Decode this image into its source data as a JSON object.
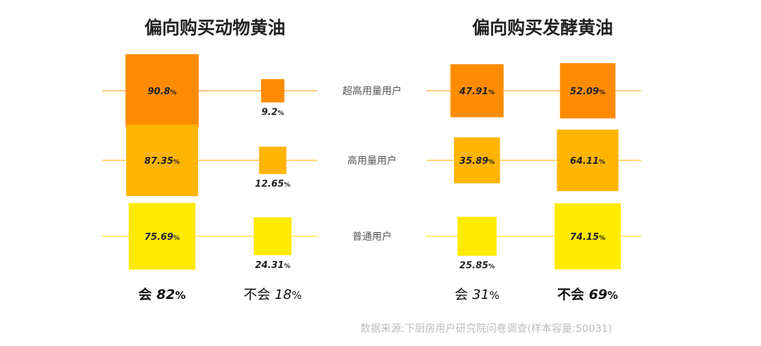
{
  "chart_data": {
    "type": "proportional-square",
    "unit": "%",
    "rows": [
      "超高用量用户",
      "高用量用户",
      "普通用户"
    ],
    "panels": [
      {
        "title": "偏向购买动物黄油",
        "columns": [
          {
            "values": [
              90.8,
              87.35,
              75.69
            ],
            "summary_label": "会",
            "summary_value": "82",
            "summary_bold": true
          },
          {
            "values": [
              9.2,
              12.65,
              24.31
            ],
            "summary_label": "不会",
            "summary_value": "18",
            "summary_bold": false
          }
        ]
      },
      {
        "title": "偏向购买发酵黄油",
        "columns": [
          {
            "values": [
              47.91,
              35.89,
              25.85
            ],
            "summary_label": "会",
            "summary_value": "31",
            "summary_bold": false
          },
          {
            "values": [
              52.09,
              64.11,
              74.15
            ],
            "summary_label": "不会",
            "summary_value": "69",
            "summary_bold": true
          }
        ]
      }
    ],
    "row_colors": [
      "#ff8c00",
      "#ffb400",
      "#ffea00"
    ],
    "line_colors": [
      "#ffc77a",
      "#ffd873",
      "#fff06e"
    ],
    "source": "数据来源:下厨房用户研究院问卷调查(样本容量:50031)"
  }
}
